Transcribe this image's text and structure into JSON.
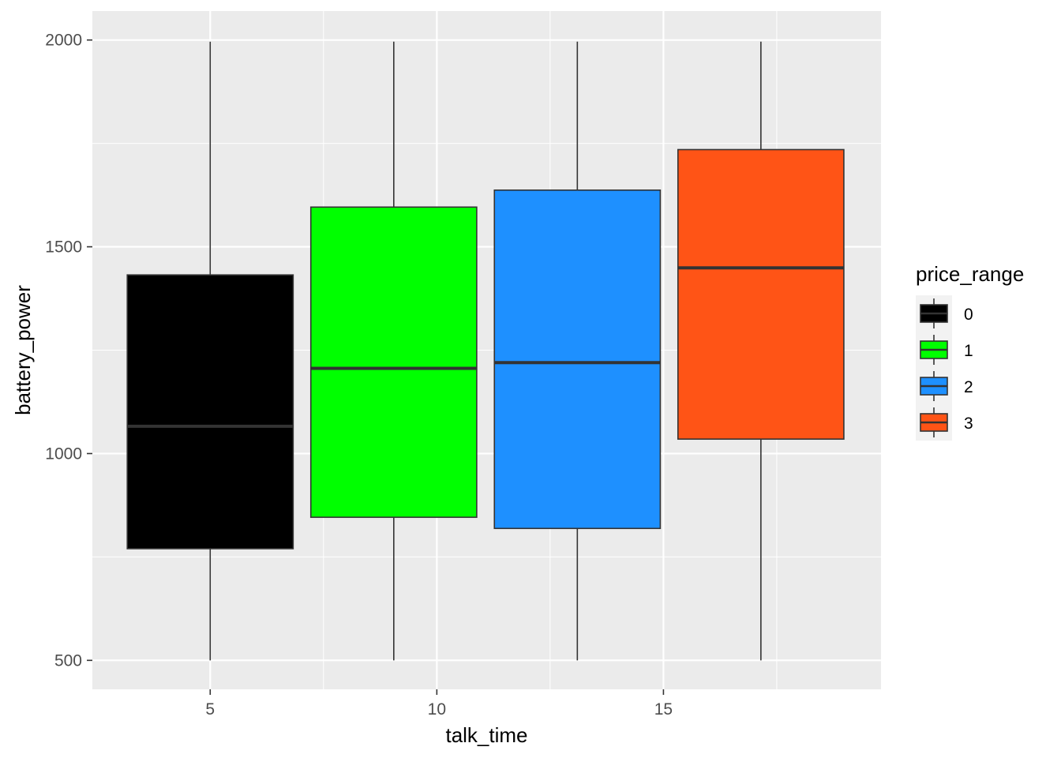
{
  "chart_data": {
    "type": "box",
    "xlabel": "talk_time",
    "ylabel": "battery_power",
    "xlim": [
      2.4,
      19.8
    ],
    "ylim": [
      430,
      2070
    ],
    "x_ticks": [
      5,
      10,
      15
    ],
    "x_minor_ticks": [
      7.5,
      12.5,
      17.5
    ],
    "y_ticks": [
      500,
      1000,
      1500,
      2000
    ],
    "y_minor_ticks": [
      750,
      1250,
      1750
    ],
    "grid": true,
    "legend": {
      "title": "price_range",
      "position": "right"
    },
    "series": [
      {
        "name": "0",
        "color": "#000000",
        "median_color": "#333333",
        "x_center": 5.0,
        "half_width": 1.83,
        "min": 500,
        "q1": 770,
        "median": 1066,
        "q3": 1432,
        "max": 1996
      },
      {
        "name": "1",
        "color": "#00FF00",
        "median_color": "#333333",
        "x_center": 9.05,
        "half_width": 1.83,
        "min": 500,
        "q1": 846,
        "median": 1206,
        "q3": 1596,
        "max": 1996
      },
      {
        "name": "2",
        "color": "#1E90FF",
        "median_color": "#333333",
        "x_center": 13.1,
        "half_width": 1.83,
        "min": 500,
        "q1": 819,
        "median": 1220,
        "q3": 1637,
        "max": 1996
      },
      {
        "name": "3",
        "color": "#FF5416",
        "median_color": "#333333",
        "x_center": 17.15,
        "half_width": 1.83,
        "min": 500,
        "q1": 1035,
        "median": 1449,
        "q3": 1735,
        "max": 1996
      }
    ]
  }
}
